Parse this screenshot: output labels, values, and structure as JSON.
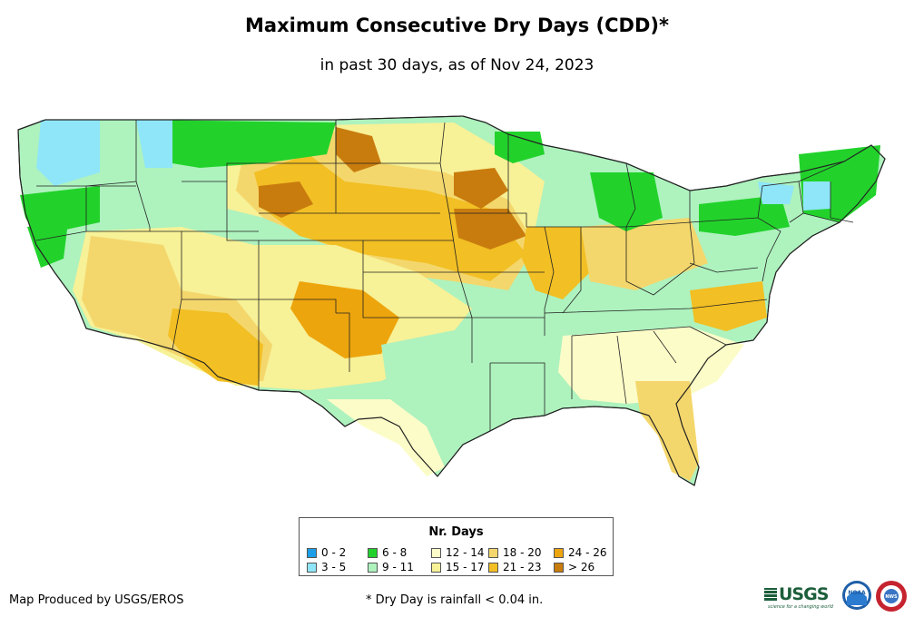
{
  "title": "Maximum Consecutive Dry Days (CDD)*",
  "subtitle": "in past 30 days, as of Nov 24, 2023",
  "legend": {
    "title": "Nr. Days",
    "items": [
      {
        "label": "0 - 2",
        "color": "#1c9ee8"
      },
      {
        "label": "3 - 5",
        "color": "#8fe6f9"
      },
      {
        "label": "6 - 8",
        "color": "#22d22b"
      },
      {
        "label": "9 - 11",
        "color": "#aef2be"
      },
      {
        "label": "12 - 14",
        "color": "#fcfcc8"
      },
      {
        "label": "15 - 17",
        "color": "#f7f197"
      },
      {
        "label": "18 - 20",
        "color": "#f4d76c"
      },
      {
        "label": "21 - 23",
        "color": "#f2bf24"
      },
      {
        "label": "24 - 26",
        "color": "#eda50d"
      },
      {
        "label": "> 26",
        "color": "#c97c0e"
      }
    ]
  },
  "credit": "Map Produced by USGS/EROS",
  "footnote": "* Dry Day is rainfall < 0.04 in.",
  "logos": {
    "usgs": "USGS",
    "usgs_tagline": "science for a changing world",
    "noaa": "NOAA",
    "nws": "NWS"
  }
}
